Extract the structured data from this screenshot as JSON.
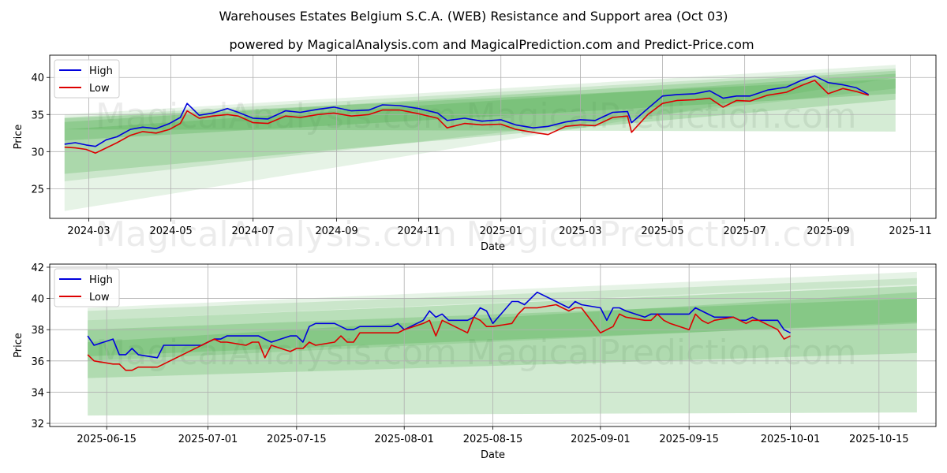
{
  "title_line1": "Warehouses Estates Belgium S.C.A. (WEB) Resistance and Support area (Oct 03)",
  "title_line2": "powered by MagicalAnalysis.com and MagicalPrediction.com and Predict-Price.com",
  "watermark_left": "MagicalAnalysis.com",
  "watermark_right": "MagicalPrediction.com",
  "colors": {
    "high": "#0000dd",
    "low": "#dd0000",
    "band": "#2e9e2e",
    "grid": "#b0b0b0"
  },
  "chart_data": [
    {
      "type": "line",
      "xlabel": "Date",
      "ylabel": "Price",
      "xlim": [
        "2024-02-01",
        "2025-11-20"
      ],
      "ylim": [
        21,
        43
      ],
      "xticks": [
        {
          "date": "2024-03-01",
          "label": "2024-03"
        },
        {
          "date": "2024-05-01",
          "label": "2024-05"
        },
        {
          "date": "2024-07-01",
          "label": "2024-07"
        },
        {
          "date": "2024-09-01",
          "label": "2024-09"
        },
        {
          "date": "2024-11-01",
          "label": "2024-11"
        },
        {
          "date": "2025-01-01",
          "label": "2025-01"
        },
        {
          "date": "2025-03-01",
          "label": "2025-03"
        },
        {
          "date": "2025-05-01",
          "label": "2025-05"
        },
        {
          "date": "2025-07-01",
          "label": "2025-07"
        },
        {
          "date": "2025-09-01",
          "label": "2025-09"
        },
        {
          "date": "2025-11-01",
          "label": "2025-11"
        }
      ],
      "yticks": [
        25,
        30,
        35,
        40
      ],
      "legend": {
        "placement": "top-left",
        "entries": [
          "High",
          "Low"
        ]
      },
      "bands": [
        {
          "x": [
            "2024-02-12",
            "2025-10-21"
          ],
          "upper": [
            35.0,
            41.7
          ],
          "lower": [
            22.0,
            40.0
          ],
          "opacity": 0.12
        },
        {
          "x": [
            "2024-02-12",
            "2025-10-21"
          ],
          "upper": [
            34.6,
            41.2
          ],
          "lower": [
            26.0,
            38.5
          ],
          "opacity": 0.14
        },
        {
          "x": [
            "2024-02-12",
            "2025-10-21"
          ],
          "upper": [
            34.0,
            40.9
          ],
          "lower": [
            33.0,
            32.7
          ],
          "opacity": 0.2
        },
        {
          "x": [
            "2024-02-12",
            "2025-10-21"
          ],
          "upper": [
            33.0,
            40.5
          ],
          "lower": [
            27.0,
            37.0
          ],
          "opacity": 0.2
        },
        {
          "x": [
            "2024-02-12",
            "2025-10-21"
          ],
          "upper": [
            34.5,
            39.8
          ],
          "lower": [
            31.5,
            37.8
          ],
          "opacity": 0.22
        }
      ],
      "series": [
        {
          "name": "High",
          "x": [
            "2024-02-12",
            "2024-02-20",
            "2024-02-28",
            "2024-03-06",
            "2024-03-14",
            "2024-03-22",
            "2024-04-01",
            "2024-04-10",
            "2024-04-20",
            "2024-04-30",
            "2024-05-08",
            "2024-05-13",
            "2024-05-22",
            "2024-06-01",
            "2024-06-12",
            "2024-06-20",
            "2024-07-01",
            "2024-07-12",
            "2024-07-25",
            "2024-08-05",
            "2024-08-18",
            "2024-08-30",
            "2024-09-12",
            "2024-09-25",
            "2024-10-05",
            "2024-10-18",
            "2024-11-01",
            "2024-11-15",
            "2024-11-22",
            "2024-12-05",
            "2024-12-18",
            "2025-01-01",
            "2025-01-12",
            "2025-01-25",
            "2025-02-05",
            "2025-02-18",
            "2025-03-01",
            "2025-03-12",
            "2025-03-25",
            "2025-04-05",
            "2025-04-08",
            "2025-04-20",
            "2025-05-01",
            "2025-05-12",
            "2025-05-25",
            "2025-06-05",
            "2025-06-15",
            "2025-06-25",
            "2025-07-05",
            "2025-07-18",
            "2025-08-01",
            "2025-08-12",
            "2025-08-22",
            "2025-09-01",
            "2025-09-12",
            "2025-09-22",
            "2025-10-01"
          ],
          "values": [
            31.0,
            31.2,
            30.9,
            30.7,
            31.6,
            32.0,
            33.0,
            33.3,
            33.1,
            33.8,
            34.6,
            36.5,
            34.9,
            35.2,
            35.8,
            35.3,
            34.5,
            34.4,
            35.5,
            35.3,
            35.7,
            36.0,
            35.5,
            35.6,
            36.3,
            36.2,
            35.8,
            35.2,
            34.2,
            34.5,
            34.1,
            34.3,
            33.6,
            33.2,
            33.4,
            34.0,
            34.3,
            34.2,
            35.3,
            35.4,
            33.9,
            35.8,
            37.5,
            37.7,
            37.8,
            38.2,
            37.2,
            37.5,
            37.5,
            38.3,
            38.7,
            39.6,
            40.2,
            39.3,
            39.0,
            38.6,
            37.7
          ]
        },
        {
          "name": "Low",
          "x": [
            "2024-02-12",
            "2024-02-20",
            "2024-02-28",
            "2024-03-06",
            "2024-03-14",
            "2024-03-22",
            "2024-04-01",
            "2024-04-10",
            "2024-04-20",
            "2024-04-30",
            "2024-05-08",
            "2024-05-13",
            "2024-05-22",
            "2024-06-01",
            "2024-06-12",
            "2024-06-20",
            "2024-07-01",
            "2024-07-12",
            "2024-07-25",
            "2024-08-05",
            "2024-08-18",
            "2024-08-30",
            "2024-09-12",
            "2024-09-25",
            "2024-10-05",
            "2024-10-18",
            "2024-11-01",
            "2024-11-15",
            "2024-11-22",
            "2024-12-05",
            "2024-12-18",
            "2025-01-01",
            "2025-01-12",
            "2025-01-25",
            "2025-02-05",
            "2025-02-18",
            "2025-03-01",
            "2025-03-12",
            "2025-03-25",
            "2025-04-05",
            "2025-04-08",
            "2025-04-20",
            "2025-05-01",
            "2025-05-12",
            "2025-05-25",
            "2025-06-05",
            "2025-06-15",
            "2025-06-25",
            "2025-07-05",
            "2025-07-18",
            "2025-08-01",
            "2025-08-12",
            "2025-08-22",
            "2025-09-01",
            "2025-09-12",
            "2025-09-22",
            "2025-10-01"
          ],
          "values": [
            30.6,
            30.5,
            30.3,
            29.8,
            30.5,
            31.2,
            32.2,
            32.7,
            32.5,
            33.0,
            33.8,
            35.5,
            34.5,
            34.8,
            35.0,
            34.8,
            33.9,
            33.8,
            34.8,
            34.6,
            35.0,
            35.2,
            34.8,
            35.0,
            35.6,
            35.6,
            35.1,
            34.5,
            33.2,
            33.8,
            33.6,
            33.7,
            33.0,
            32.6,
            32.3,
            33.4,
            33.6,
            33.5,
            34.6,
            34.8,
            32.6,
            35.0,
            36.5,
            36.9,
            37.0,
            37.2,
            36.0,
            36.9,
            36.8,
            37.6,
            38.0,
            38.9,
            39.6,
            37.8,
            38.5,
            38.1,
            37.6
          ]
        }
      ]
    },
    {
      "type": "line",
      "xlabel": "Date",
      "ylabel": "Price",
      "xlim": [
        "2025-06-06",
        "2025-10-24"
      ],
      "ylim": [
        31.8,
        42.2
      ],
      "xticks": [
        {
          "date": "2025-06-15",
          "label": "2025-06-15"
        },
        {
          "date": "2025-07-01",
          "label": "2025-07-01"
        },
        {
          "date": "2025-07-15",
          "label": "2025-07-15"
        },
        {
          "date": "2025-08-01",
          "label": "2025-08-01"
        },
        {
          "date": "2025-08-15",
          "label": "2025-08-15"
        },
        {
          "date": "2025-09-01",
          "label": "2025-09-01"
        },
        {
          "date": "2025-09-15",
          "label": "2025-09-15"
        },
        {
          "date": "2025-10-01",
          "label": "2025-10-01"
        },
        {
          "date": "2025-10-15",
          "label": "2025-10-15"
        }
      ],
      "yticks": [
        32,
        34,
        36,
        38,
        40,
        42
      ],
      "legend": {
        "placement": "top-left",
        "entries": [
          "High",
          "Low"
        ]
      },
      "bands": [
        {
          "x": [
            "2025-06-12",
            "2025-10-21"
          ],
          "upper": [
            39.4,
            41.7
          ],
          "lower": [
            38.6,
            40.9
          ],
          "opacity": 0.12
        },
        {
          "x": [
            "2025-06-12",
            "2025-10-21"
          ],
          "upper": [
            39.2,
            41.3
          ],
          "lower": [
            36.0,
            38.5
          ],
          "opacity": 0.14
        },
        {
          "x": [
            "2025-06-12",
            "2025-10-21"
          ],
          "upper": [
            38.6,
            40.8
          ],
          "lower": [
            32.5,
            32.7
          ],
          "opacity": 0.22
        },
        {
          "x": [
            "2025-06-12",
            "2025-10-21"
          ],
          "upper": [
            37.2,
            40.4
          ],
          "lower": [
            34.9,
            36.5
          ],
          "opacity": 0.2
        },
        {
          "x": [
            "2025-06-12",
            "2025-10-21"
          ],
          "upper": [
            38.0,
            40.0
          ],
          "lower": [
            36.3,
            38.4
          ],
          "opacity": 0.2
        }
      ],
      "series": [
        {
          "name": "High",
          "x": [
            "2025-06-12",
            "2025-06-13",
            "2025-06-16",
            "2025-06-17",
            "2025-06-18",
            "2025-06-19",
            "2025-06-20",
            "2025-06-23",
            "2025-06-24",
            "2025-06-30",
            "2025-07-01",
            "2025-07-02",
            "2025-07-03",
            "2025-07-04",
            "2025-07-07",
            "2025-07-08",
            "2025-07-09",
            "2025-07-10",
            "2025-07-11",
            "2025-07-14",
            "2025-07-15",
            "2025-07-16",
            "2025-07-17",
            "2025-07-18",
            "2025-07-21",
            "2025-07-22",
            "2025-07-23",
            "2025-07-24",
            "2025-07-25",
            "2025-07-28",
            "2025-07-29",
            "2025-07-30",
            "2025-07-31",
            "2025-08-01",
            "2025-08-04",
            "2025-08-05",
            "2025-08-06",
            "2025-08-07",
            "2025-08-08",
            "2025-08-11",
            "2025-08-12",
            "2025-08-13",
            "2025-08-14",
            "2025-08-15",
            "2025-08-18",
            "2025-08-19",
            "2025-08-20",
            "2025-08-21",
            "2025-08-22",
            "2025-08-25",
            "2025-08-26",
            "2025-08-27",
            "2025-08-28",
            "2025-08-29",
            "2025-09-01",
            "2025-09-02",
            "2025-09-03",
            "2025-09-04",
            "2025-09-05",
            "2025-09-08",
            "2025-09-09",
            "2025-09-10",
            "2025-09-11",
            "2025-09-12",
            "2025-09-15",
            "2025-09-16",
            "2025-09-17",
            "2025-09-18",
            "2025-09-19",
            "2025-09-22",
            "2025-09-23",
            "2025-09-24",
            "2025-09-25",
            "2025-09-26",
            "2025-09-29",
            "2025-09-30",
            "2025-10-01"
          ],
          "values": [
            37.6,
            37.0,
            37.4,
            36.4,
            36.4,
            36.8,
            36.4,
            36.2,
            37.0,
            37.0,
            37.2,
            37.4,
            37.4,
            37.6,
            37.6,
            37.6,
            37.6,
            37.4,
            37.2,
            37.6,
            37.6,
            37.2,
            38.2,
            38.4,
            38.4,
            38.2,
            38.0,
            38.0,
            38.2,
            38.2,
            38.2,
            38.2,
            38.4,
            38.0,
            38.6,
            39.2,
            38.8,
            39.0,
            38.6,
            38.6,
            38.8,
            39.4,
            39.2,
            38.4,
            39.8,
            39.8,
            39.6,
            40.0,
            40.4,
            39.8,
            39.6,
            39.4,
            39.8,
            39.6,
            39.4,
            38.6,
            39.4,
            39.4,
            39.2,
            38.8,
            39.0,
            39.0,
            39.0,
            39.0,
            39.0,
            39.4,
            39.2,
            39.0,
            38.8,
            38.8,
            38.6,
            38.6,
            38.8,
            38.6,
            38.6,
            38.0,
            37.8
          ]
        },
        {
          "name": "Low",
          "x": [
            "2025-06-12",
            "2025-06-13",
            "2025-06-16",
            "2025-06-17",
            "2025-06-18",
            "2025-06-19",
            "2025-06-20",
            "2025-06-23",
            "2025-06-24",
            "2025-06-30",
            "2025-07-01",
            "2025-07-02",
            "2025-07-03",
            "2025-07-04",
            "2025-07-07",
            "2025-07-08",
            "2025-07-09",
            "2025-07-10",
            "2025-07-11",
            "2025-07-14",
            "2025-07-15",
            "2025-07-16",
            "2025-07-17",
            "2025-07-18",
            "2025-07-21",
            "2025-07-22",
            "2025-07-23",
            "2025-07-24",
            "2025-07-25",
            "2025-07-28",
            "2025-07-29",
            "2025-07-30",
            "2025-07-31",
            "2025-08-01",
            "2025-08-04",
            "2025-08-05",
            "2025-08-06",
            "2025-08-07",
            "2025-08-08",
            "2025-08-11",
            "2025-08-12",
            "2025-08-13",
            "2025-08-14",
            "2025-08-15",
            "2025-08-18",
            "2025-08-19",
            "2025-08-20",
            "2025-08-21",
            "2025-08-22",
            "2025-08-25",
            "2025-08-26",
            "2025-08-27",
            "2025-08-28",
            "2025-08-29",
            "2025-09-01",
            "2025-09-02",
            "2025-09-03",
            "2025-09-04",
            "2025-09-05",
            "2025-09-08",
            "2025-09-09",
            "2025-09-10",
            "2025-09-11",
            "2025-09-12",
            "2025-09-15",
            "2025-09-16",
            "2025-09-17",
            "2025-09-18",
            "2025-09-19",
            "2025-09-22",
            "2025-09-23",
            "2025-09-24",
            "2025-09-25",
            "2025-09-26",
            "2025-09-29",
            "2025-09-30",
            "2025-10-01"
          ],
          "values": [
            36.4,
            36.0,
            35.8,
            35.8,
            35.4,
            35.4,
            35.6,
            35.6,
            35.8,
            37.0,
            37.2,
            37.4,
            37.2,
            37.2,
            37.0,
            37.2,
            37.2,
            36.2,
            37.0,
            36.6,
            36.8,
            36.8,
            37.2,
            37.0,
            37.2,
            37.6,
            37.2,
            37.2,
            37.8,
            37.8,
            37.8,
            37.8,
            37.8,
            38.0,
            38.4,
            38.6,
            37.6,
            38.6,
            38.4,
            37.8,
            38.8,
            38.6,
            38.2,
            38.2,
            38.4,
            39.0,
            39.4,
            39.4,
            39.4,
            39.6,
            39.4,
            39.2,
            39.4,
            39.4,
            37.8,
            38.0,
            38.2,
            39.0,
            38.8,
            38.6,
            38.6,
            39.0,
            38.6,
            38.4,
            38.0,
            39.0,
            38.6,
            38.4,
            38.6,
            38.8,
            38.6,
            38.4,
            38.6,
            38.6,
            38.0,
            37.4,
            37.6
          ]
        }
      ]
    }
  ]
}
